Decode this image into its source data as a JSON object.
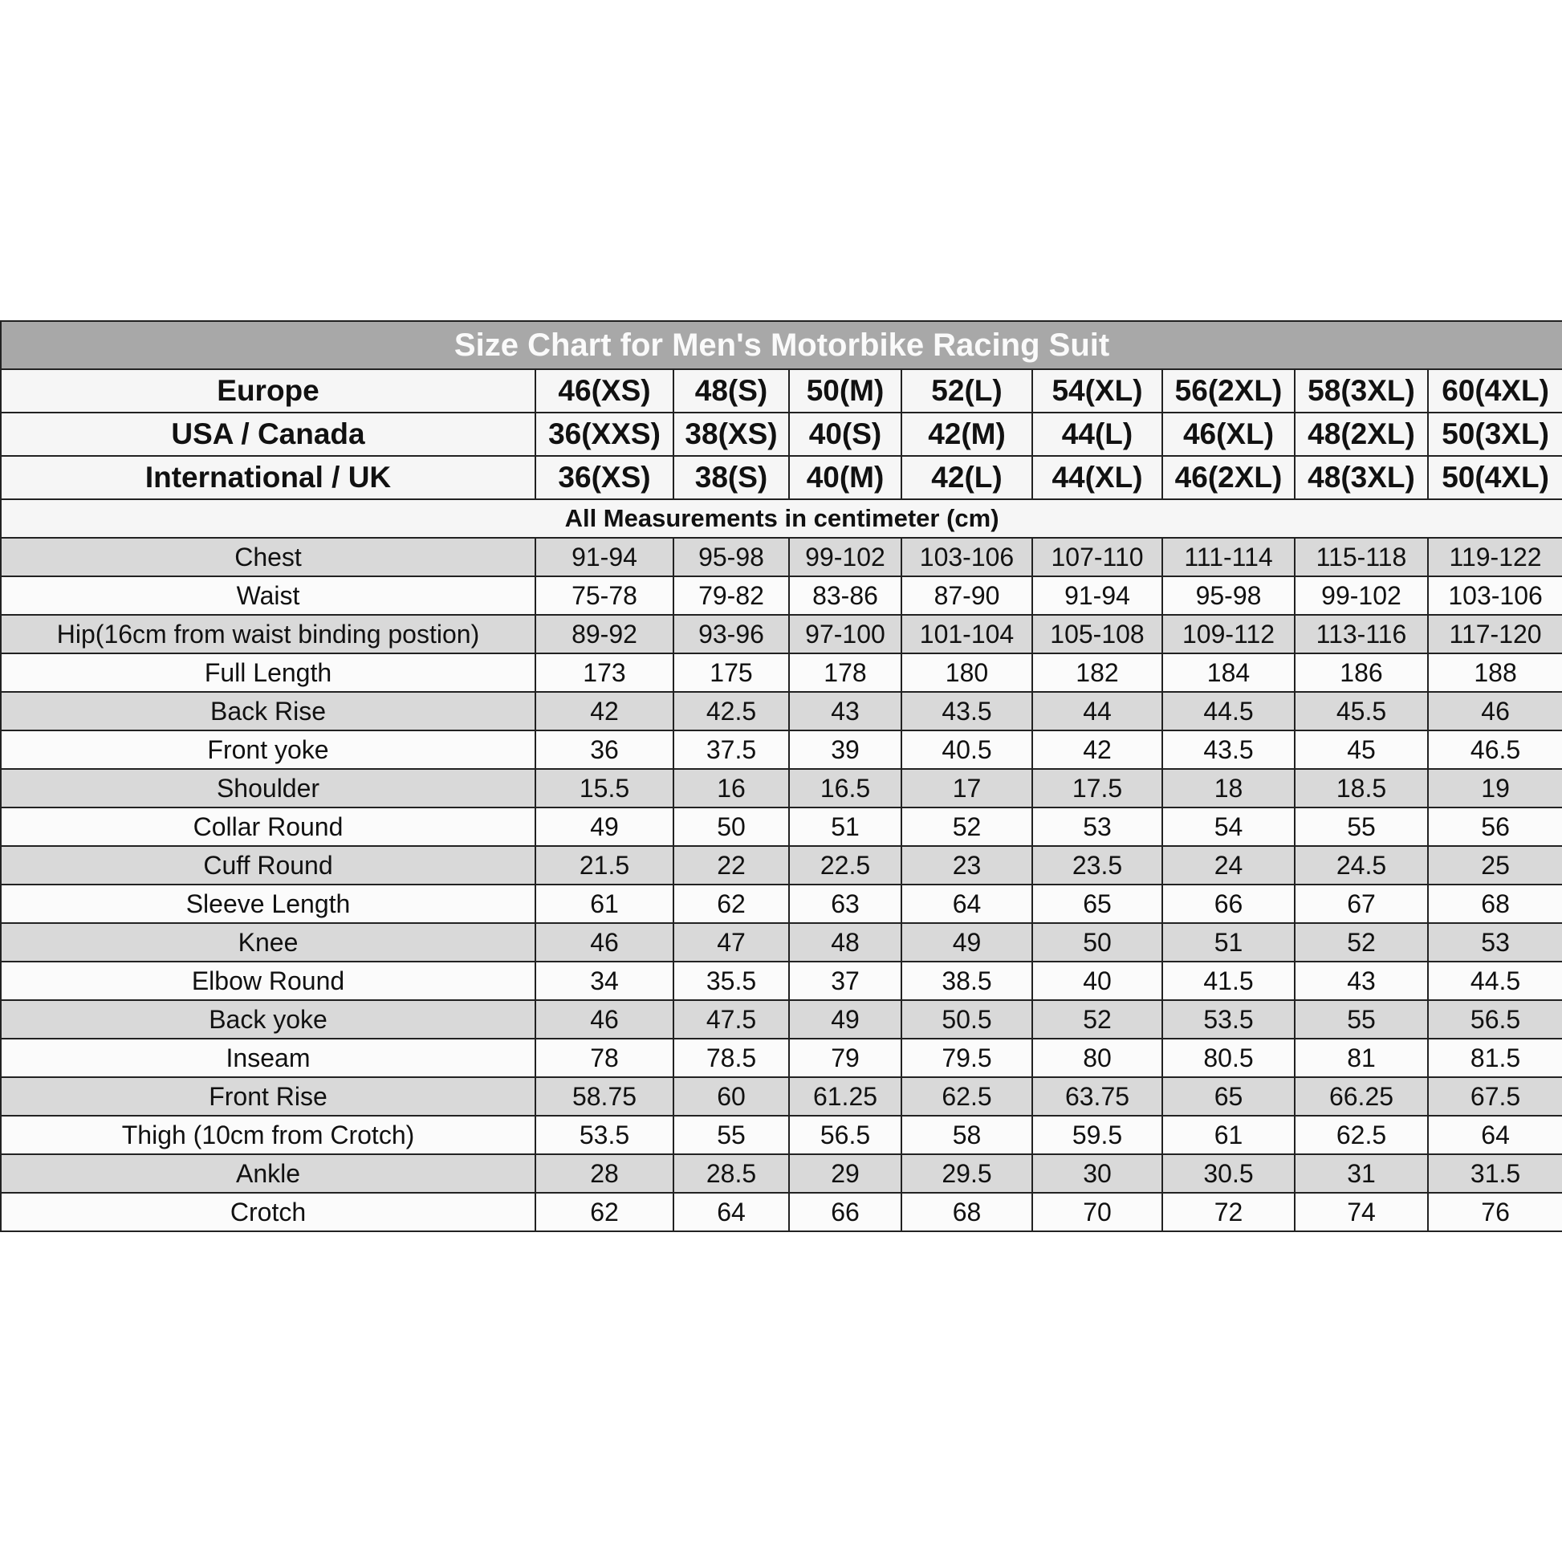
{
  "title": "Size Chart for Men's Motorbike Racing Suit",
  "colors": {
    "title_bg": "#a8a8a8",
    "stripe": "#d9d9d9",
    "border": "#222222"
  },
  "size_rows": [
    {
      "label": "Europe",
      "values": [
        "46(XS)",
        "48(S)",
        "50(M)",
        "52(L)",
        "54(XL)",
        "56(2XL)",
        "58(3XL)",
        "60(4XL)"
      ]
    },
    {
      "label": "USA / Canada",
      "values": [
        "36(XXS)",
        "38(XS)",
        "40(S)",
        "42(M)",
        "44(L)",
        "46(XL)",
        "48(2XL)",
        "50(3XL)"
      ]
    },
    {
      "label": "International / UK",
      "values": [
        "36(XS)",
        "38(S)",
        "40(M)",
        "42(L)",
        "44(XL)",
        "46(2XL)",
        "48(3XL)",
        "50(4XL)"
      ]
    }
  ],
  "measurement_note": "All Measurements in centimeter (cm)",
  "measurements": [
    {
      "label": "Chest",
      "values": [
        "91-94",
        "95-98",
        "99-102",
        "103-106",
        "107-110",
        "111-114",
        "115-118",
        "119-122"
      ]
    },
    {
      "label": "Waist",
      "values": [
        "75-78",
        "79-82",
        "83-86",
        "87-90",
        "91-94",
        "95-98",
        "99-102",
        "103-106"
      ]
    },
    {
      "label": "Hip(16cm from waist binding postion)",
      "values": [
        "89-92",
        "93-96",
        "97-100",
        "101-104",
        "105-108",
        "109-112",
        "113-116",
        "117-120"
      ]
    },
    {
      "label": "Full Length",
      "values": [
        "173",
        "175",
        "178",
        "180",
        "182",
        "184",
        "186",
        "188"
      ]
    },
    {
      "label": "Back Rise",
      "values": [
        "42",
        "42.5",
        "43",
        "43.5",
        "44",
        "44.5",
        "45.5",
        "46"
      ]
    },
    {
      "label": "Front yoke",
      "values": [
        "36",
        "37.5",
        "39",
        "40.5",
        "42",
        "43.5",
        "45",
        "46.5"
      ]
    },
    {
      "label": "Shoulder",
      "values": [
        "15.5",
        "16",
        "16.5",
        "17",
        "17.5",
        "18",
        "18.5",
        "19"
      ]
    },
    {
      "label": "Collar Round",
      "values": [
        "49",
        "50",
        "51",
        "52",
        "53",
        "54",
        "55",
        "56"
      ]
    },
    {
      "label": "Cuff Round",
      "values": [
        "21.5",
        "22",
        "22.5",
        "23",
        "23.5",
        "24",
        "24.5",
        "25"
      ]
    },
    {
      "label": "Sleeve Length",
      "values": [
        "61",
        "62",
        "63",
        "64",
        "65",
        "66",
        "67",
        "68"
      ]
    },
    {
      "label": "Knee",
      "values": [
        "46",
        "47",
        "48",
        "49",
        "50",
        "51",
        "52",
        "53"
      ]
    },
    {
      "label": "Elbow Round",
      "values": [
        "34",
        "35.5",
        "37",
        "38.5",
        "40",
        "41.5",
        "43",
        "44.5"
      ]
    },
    {
      "label": "Back yoke",
      "values": [
        "46",
        "47.5",
        "49",
        "50.5",
        "52",
        "53.5",
        "55",
        "56.5"
      ]
    },
    {
      "label": "Inseam",
      "values": [
        "78",
        "78.5",
        "79",
        "79.5",
        "80",
        "80.5",
        "81",
        "81.5"
      ]
    },
    {
      "label": "Front Rise",
      "values": [
        "58.75",
        "60",
        "61.25",
        "62.5",
        "63.75",
        "65",
        "66.25",
        "67.5"
      ]
    },
    {
      "label": "Thigh (10cm from Crotch)",
      "values": [
        "53.5",
        "55",
        "56.5",
        "58",
        "59.5",
        "61",
        "62.5",
        "64"
      ]
    },
    {
      "label": "Ankle",
      "values": [
        "28",
        "28.5",
        "29",
        "29.5",
        "30",
        "30.5",
        "31",
        "31.5"
      ]
    },
    {
      "label": "Crotch",
      "values": [
        "62",
        "64",
        "66",
        "68",
        "70",
        "72",
        "74",
        "76"
      ]
    }
  ]
}
